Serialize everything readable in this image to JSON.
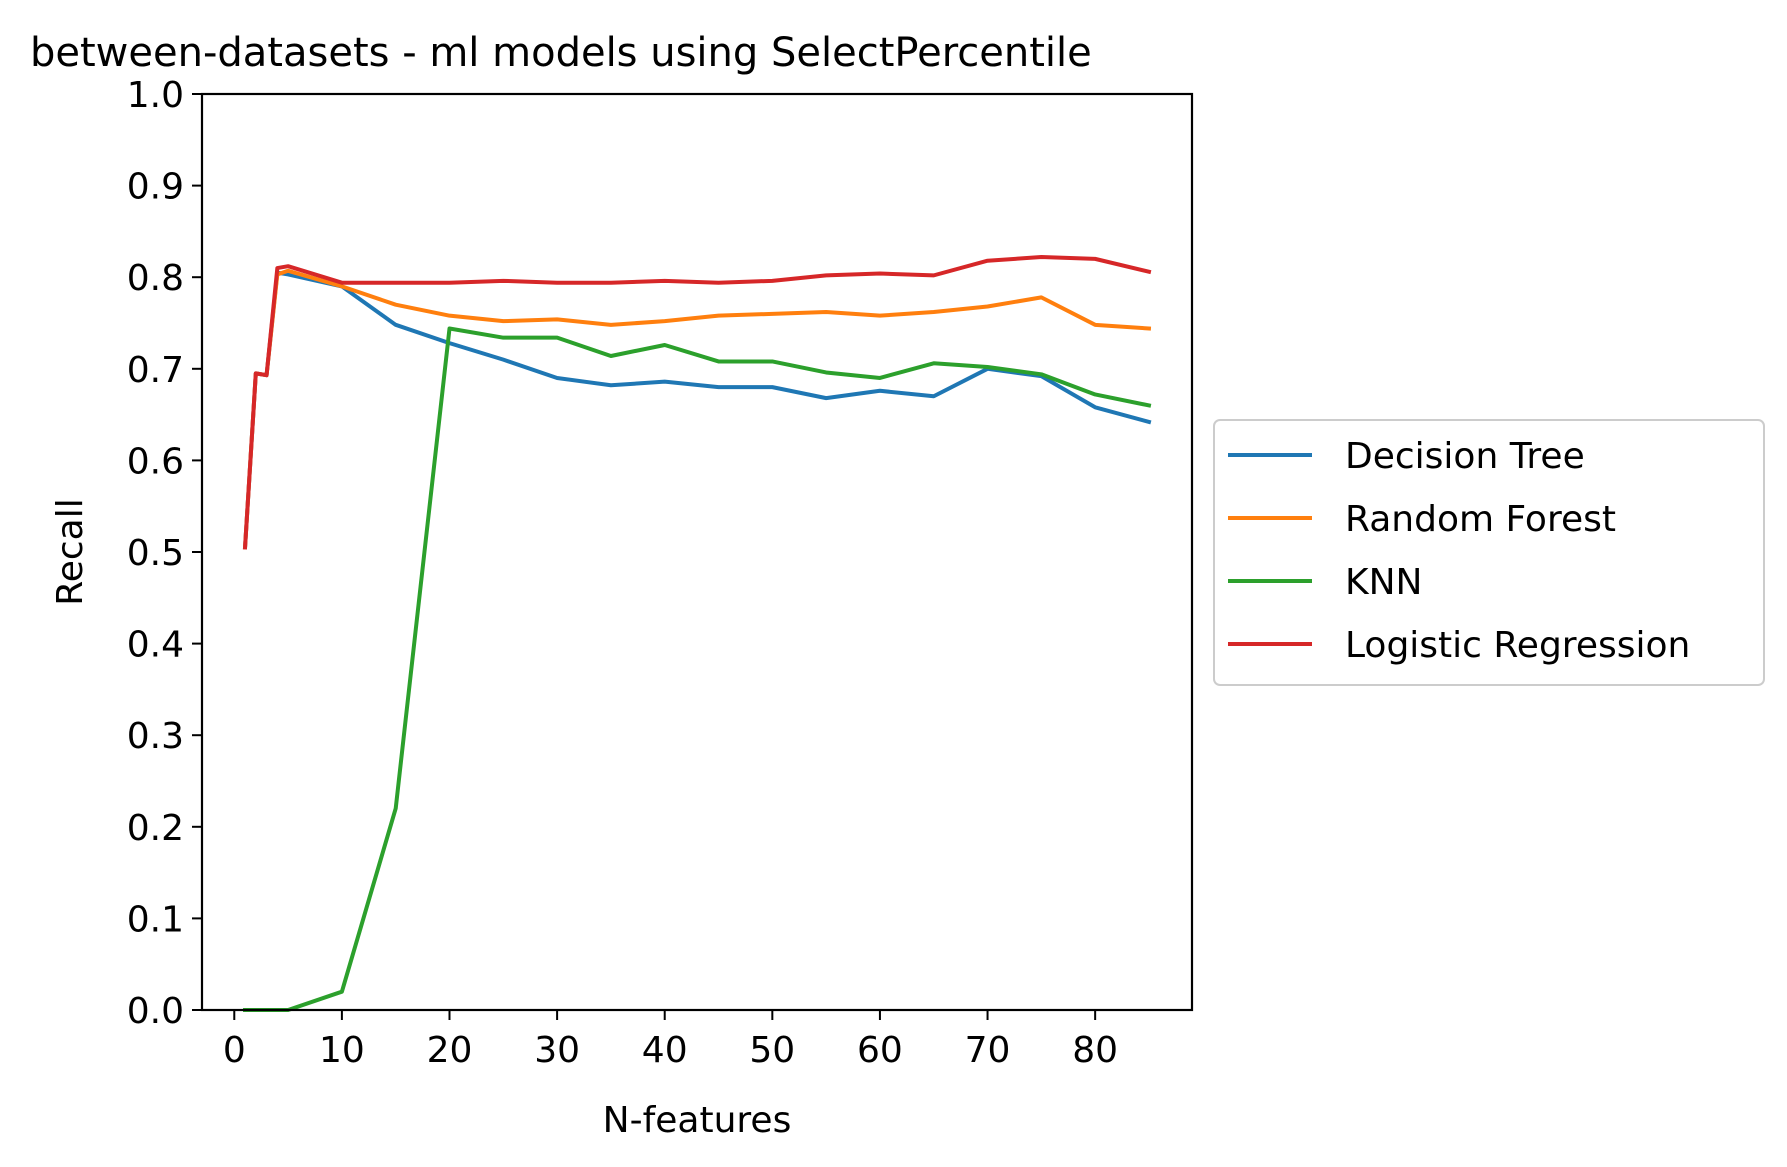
{
  "chart_data": {
    "type": "line",
    "title": "between-datasets - ml models using SelectPercentile",
    "xlabel": "N-features",
    "ylabel": "Recall",
    "xlim": [
      -3,
      89
    ],
    "ylim": [
      0.0,
      1.0
    ],
    "xticks": [
      0,
      10,
      20,
      30,
      40,
      50,
      60,
      70,
      80
    ],
    "xtick_labels": [
      "0",
      "10",
      "20",
      "30",
      "40",
      "50",
      "60",
      "70",
      "80"
    ],
    "yticks": [
      0.0,
      0.1,
      0.2,
      0.3,
      0.4,
      0.5,
      0.6,
      0.7,
      0.8,
      0.9,
      1.0
    ],
    "ytick_labels": [
      "0.0",
      "0.1",
      "0.2",
      "0.3",
      "0.4",
      "0.5",
      "0.6",
      "0.7",
      "0.8",
      "0.9",
      "1.0"
    ],
    "grid": false,
    "legend_position": "outside-right",
    "x": [
      1,
      2,
      3,
      4,
      5,
      10,
      15,
      20,
      25,
      30,
      35,
      40,
      45,
      50,
      55,
      60,
      65,
      70,
      75,
      80,
      85
    ],
    "series": [
      {
        "name": "Decision Tree",
        "color": "#1f77b4",
        "values": [
          0.505,
          0.695,
          0.693,
          0.805,
          0.803,
          0.79,
          0.748,
          0.728,
          0.71,
          0.69,
          0.682,
          0.686,
          0.68,
          0.68,
          0.668,
          0.676,
          0.67,
          0.7,
          0.692,
          0.658,
          0.642
        ]
      },
      {
        "name": "Random Forest",
        "color": "#ff7f0e",
        "values": [
          0.505,
          0.695,
          0.693,
          0.803,
          0.807,
          0.79,
          0.77,
          0.758,
          0.752,
          0.754,
          0.748,
          0.752,
          0.758,
          0.76,
          0.762,
          0.758,
          0.762,
          0.768,
          0.778,
          0.748,
          0.744
        ]
      },
      {
        "name": "KNN",
        "color": "#2ca02c",
        "values": [
          0.0,
          0.0,
          0.0,
          0.0,
          0.0,
          0.02,
          0.22,
          0.744,
          0.734,
          0.734,
          0.714,
          0.726,
          0.708,
          0.708,
          0.696,
          0.69,
          0.706,
          0.702,
          0.694,
          0.672,
          0.66
        ]
      },
      {
        "name": "Logistic Regression",
        "color": "#d62728",
        "values": [
          0.505,
          0.695,
          0.693,
          0.81,
          0.812,
          0.794,
          0.794,
          0.794,
          0.796,
          0.794,
          0.794,
          0.796,
          0.794,
          0.796,
          0.802,
          0.804,
          0.802,
          0.818,
          0.822,
          0.82,
          0.806
        ]
      }
    ]
  }
}
